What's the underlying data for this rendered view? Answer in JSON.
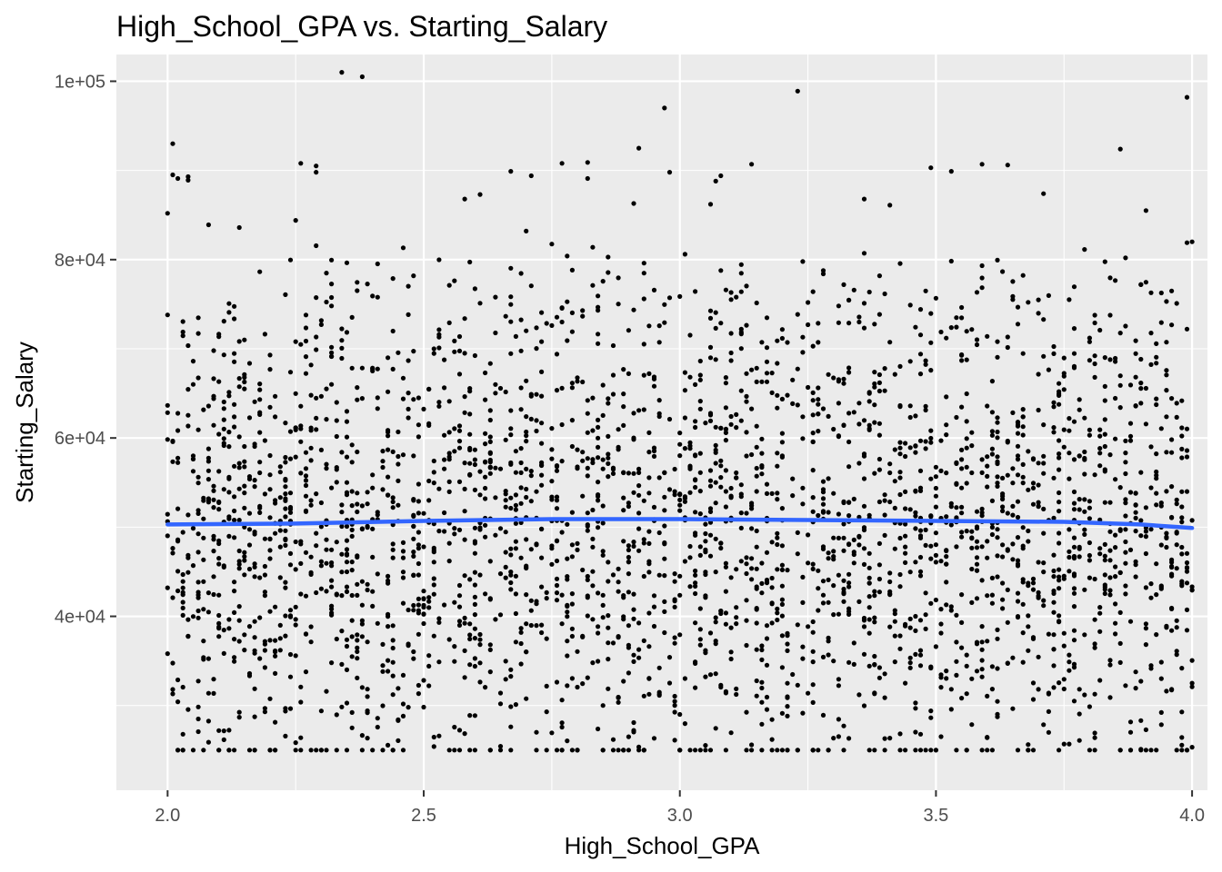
{
  "chart_data": {
    "type": "scatter",
    "title": "High_School_GPA vs. Starting_Salary",
    "xlabel": "High_School_GPA",
    "ylabel": "Starting_Salary",
    "xlim": [
      1.9,
      4.03
    ],
    "ylim": [
      20500,
      103000
    ],
    "x_ticks": [
      2.0,
      2.5,
      3.0,
      3.5,
      4.0
    ],
    "x_tick_labels": [
      "2.0",
      "2.5",
      "3.0",
      "3.5",
      "4.0"
    ],
    "y_ticks": [
      40000,
      60000,
      80000,
      100000
    ],
    "y_tick_labels": [
      "4e+04",
      "6e+04",
      "8e+04",
      "1e+05"
    ],
    "x_minor_ticks": [
      2.25,
      2.75,
      3.25,
      3.75
    ],
    "y_minor_ticks": [
      30000,
      50000,
      70000,
      90000
    ],
    "grid": true,
    "background": "#ebebeb",
    "point_color": "#000000",
    "smooth_color": "#3366ff",
    "x_precision": 0.01,
    "salary_floor": 25000,
    "n_points": 3000,
    "smooth": {
      "x": [
        2.0,
        2.25,
        2.5,
        2.75,
        3.0,
        3.25,
        3.5,
        3.75,
        3.9,
        4.0
      ],
      "y": [
        50300,
        50400,
        50700,
        50900,
        50900,
        50800,
        50700,
        50600,
        50300,
        49900
      ]
    },
    "outliers": [
      {
        "x": 2.34,
        "y": 101000
      },
      {
        "x": 2.38,
        "y": 100500
      },
      {
        "x": 3.23,
        "y": 98900
      },
      {
        "x": 3.99,
        "y": 98200
      },
      {
        "x": 2.97,
        "y": 97000
      },
      {
        "x": 2.01,
        "y": 93000
      },
      {
        "x": 2.92,
        "y": 92500
      },
      {
        "x": 3.86,
        "y": 92400
      },
      {
        "x": 2.26,
        "y": 90800
      },
      {
        "x": 2.29,
        "y": 90500
      },
      {
        "x": 2.29,
        "y": 89800
      },
      {
        "x": 2.01,
        "y": 89500
      },
      {
        "x": 2.02,
        "y": 89100
      },
      {
        "x": 2.04,
        "y": 89300
      },
      {
        "x": 2.04,
        "y": 88900
      },
      {
        "x": 2.82,
        "y": 90900
      },
      {
        "x": 2.98,
        "y": 89800
      },
      {
        "x": 2.67,
        "y": 89900
      },
      {
        "x": 2.71,
        "y": 89400
      },
      {
        "x": 2.77,
        "y": 90800
      },
      {
        "x": 2.82,
        "y": 89100
      },
      {
        "x": 3.14,
        "y": 90700
      },
      {
        "x": 3.49,
        "y": 90300
      },
      {
        "x": 3.53,
        "y": 89900
      },
      {
        "x": 3.59,
        "y": 90700
      },
      {
        "x": 3.64,
        "y": 90600
      },
      {
        "x": 3.08,
        "y": 89400
      },
      {
        "x": 3.07,
        "y": 88800
      },
      {
        "x": 3.71,
        "y": 87400
      },
      {
        "x": 3.91,
        "y": 85500
      },
      {
        "x": 3.36,
        "y": 86800
      },
      {
        "x": 3.41,
        "y": 86100
      },
      {
        "x": 2.61,
        "y": 87300
      },
      {
        "x": 2.58,
        "y": 86800
      },
      {
        "x": 2.91,
        "y": 86300
      },
      {
        "x": 3.06,
        "y": 86200
      },
      {
        "x": 2.0,
        "y": 85200
      },
      {
        "x": 2.25,
        "y": 84400
      },
      {
        "x": 2.14,
        "y": 83600
      },
      {
        "x": 2.08,
        "y": 83900
      },
      {
        "x": 2.7,
        "y": 83200
      },
      {
        "x": 4.0,
        "y": 82000
      },
      {
        "x": 3.99,
        "y": 81900
      }
    ]
  }
}
